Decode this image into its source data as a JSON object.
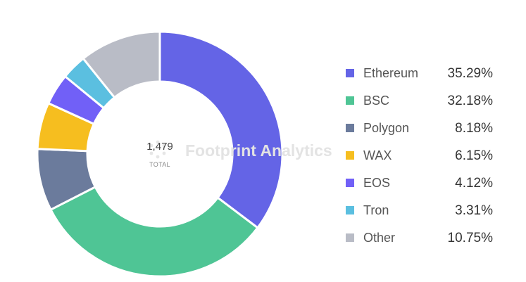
{
  "chart_data": {
    "type": "pie",
    "donut": true,
    "total": "1,479",
    "total_label": "TOTAL",
    "watermark": "Footprint Analytics",
    "legend_position": "right",
    "series": [
      {
        "name": "Ethereum",
        "value": 35.29,
        "label": "35.29%",
        "color": "#6464e6"
      },
      {
        "name": "BSC",
        "value": 32.18,
        "label": "32.18%",
        "color": "#4fc595"
      },
      {
        "name": "Polygon",
        "value": 8.18,
        "label": "8.18%",
        "color": "#6b7b9c"
      },
      {
        "name": "WAX",
        "value": 6.15,
        "label": "6.15%",
        "color": "#f6be1f"
      },
      {
        "name": "EOS",
        "value": 4.12,
        "label": "4.12%",
        "color": "#7160f7"
      },
      {
        "name": "Tron",
        "value": 3.31,
        "label": "3.31%",
        "color": "#5bbfe0"
      },
      {
        "name": "Other",
        "value": 10.75,
        "label": "10.75%",
        "color": "#b9bcc6"
      }
    ]
  }
}
